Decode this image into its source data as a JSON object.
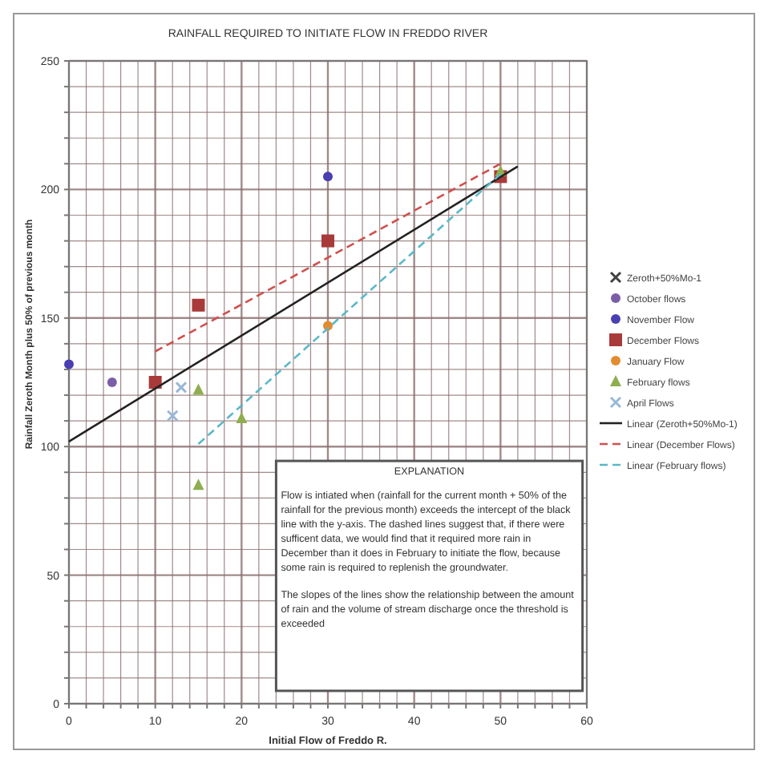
{
  "chart_data": {
    "type": "scatter",
    "title": "RAINFALL REQUIRED TO INITIATE FLOW IN FREDDO RIVER",
    "xlabel": "Initial Flow of Freddo R.",
    "ylabel": "Rainfall Zeroth Month plus 50% of previous month",
    "xlim": [
      0,
      60
    ],
    "ylim": [
      0,
      250
    ],
    "xticks": [
      0,
      {
        "value": 2,
        "label": null
      },
      {
        "value": 4,
        "label": null
      },
      {
        "value": 6,
        "label": null
      },
      {
        "value": 8,
        "label": null
      },
      10,
      {
        "value": 12,
        "label": null
      },
      {
        "value": 14,
        "label": null
      },
      {
        "value": 16,
        "label": null
      },
      {
        "value": 18,
        "label": null
      },
      20,
      {
        "value": 22,
        "label": null
      },
      {
        "value": 24,
        "label": null
      },
      {
        "value": 26,
        "label": null
      },
      {
        "value": 28,
        "label": null
      },
      30,
      {
        "value": 32,
        "label": null
      },
      {
        "value": 34,
        "label": null
      },
      {
        "value": 36,
        "label": null
      },
      {
        "value": 38,
        "label": null
      },
      40,
      {
        "value": 42,
        "label": null
      },
      {
        "value": 44,
        "label": null
      },
      {
        "value": 46,
        "label": null
      },
      {
        "value": 48,
        "label": null
      },
      50,
      {
        "value": 52,
        "label": null
      },
      {
        "value": 54,
        "label": null
      },
      {
        "value": 56,
        "label": null
      },
      {
        "value": 58,
        "label": null
      },
      60
    ],
    "yticks": [
      0,
      {
        "value": 10,
        "label": null
      },
      {
        "value": 20,
        "label": null
      },
      {
        "value": 30,
        "label": null
      },
      {
        "value": 40,
        "label": null
      },
      50,
      {
        "value": 60,
        "label": null
      },
      {
        "value": 70,
        "label": null
      },
      {
        "value": 80,
        "label": null
      },
      {
        "value": 90,
        "label": null
      },
      100,
      {
        "value": 110,
        "label": null
      },
      {
        "value": 120,
        "label": null
      },
      {
        "value": 130,
        "label": null
      },
      {
        "value": 140,
        "label": null
      },
      150,
      {
        "value": 160,
        "label": null
      },
      {
        "value": 170,
        "label": null
      },
      {
        "value": 180,
        "label": null
      },
      {
        "value": 190,
        "label": null
      },
      200,
      {
        "value": 210,
        "label": null
      },
      {
        "value": 220,
        "label": null
      },
      {
        "value": 230,
        "label": null
      },
      {
        "value": 240,
        "label": null
      },
      250
    ],
    "grid": true,
    "legend": "right",
    "series": [
      {
        "name": "Zeroth+50%Mo-1",
        "marker": "cross",
        "color": "#404040"
      },
      {
        "name": "October flows",
        "marker": "circle",
        "color": "#7b5ea7",
        "x": [
          5
        ],
        "values": [
          125
        ]
      },
      {
        "name": "November Flow",
        "marker": "circle",
        "color": "#4a3fb0",
        "x": [
          0,
          30
        ],
        "values": [
          132,
          205
        ]
      },
      {
        "name": "December Flows",
        "marker": "square",
        "color": "#a83a3a",
        "x": [
          10,
          15,
          30,
          50
        ],
        "values": [
          125,
          155,
          180,
          205
        ]
      },
      {
        "name": "January Flow",
        "marker": "circle",
        "color": "#e38b2f",
        "x": [
          30
        ],
        "values": [
          147
        ]
      },
      {
        "name": "February  flows",
        "marker": "triangle",
        "color": "#8fae4e",
        "x": [
          15,
          15,
          20,
          50
        ],
        "values": [
          122,
          85,
          111,
          207
        ]
      },
      {
        "name": "April Flows",
        "marker": "cross",
        "color": "#98b8d8",
        "x": [
          12,
          13
        ],
        "values": [
          112,
          123
        ]
      },
      {
        "name": "Linear (Zeroth+50%Mo-1)",
        "type": "line",
        "marker": "none",
        "line_style": "solid",
        "color": "#222222",
        "x": [
          0,
          52
        ],
        "values": [
          102,
          209
        ]
      },
      {
        "name": "Linear (December Flows)",
        "type": "line",
        "marker": "none",
        "line_style": "dashed",
        "color": "#d0504d",
        "x": [
          10,
          50
        ],
        "values": [
          137,
          210
        ]
      },
      {
        "name": "Linear (February flows)",
        "type": "line",
        "marker": "none",
        "line_style": "dashed",
        "color": "#5bb8c8",
        "x": [
          15,
          50
        ],
        "values": [
          101,
          206
        ]
      }
    ],
    "annotations": [
      "EXPLANATION",
      "Flow is intiated when (rainfall for the current month + 50% of the rainfall for the previous month) exceeds the intercept of the black line with the y-axis.   The dashed lines suggest that, if there were sufficent data, we would find that it required more rain in December than it does in February to initiate the flow, because some rain is required to replenish the groundwater.",
      "The slopes of the lines show the relationship between the amount of rain and the volume of stream discharge once the threshold is exceeded"
    ]
  }
}
